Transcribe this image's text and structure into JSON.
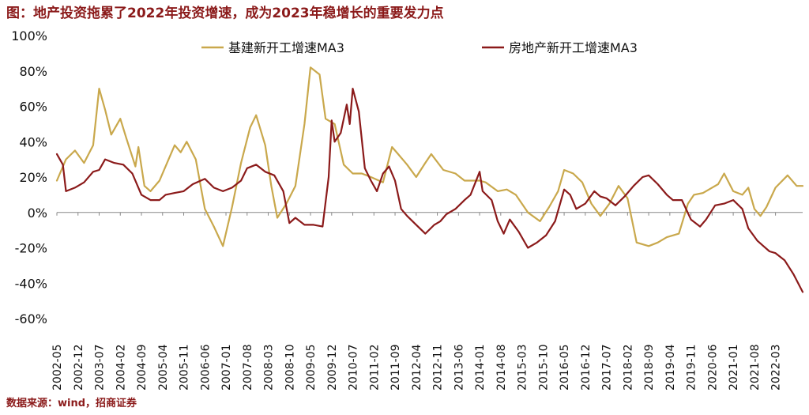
{
  "title": "图：地产投资拖累了2022年投资增速，成为2023年稳增长的重要发力点",
  "source": "数据来源：wind，招商证券",
  "chart_data": {
    "type": "line",
    "title": "图：地产投资拖累了2022年投资增速，成为2023年稳增长的重要发力点",
    "xlabel": "",
    "ylabel": "",
    "ylim": [
      -60,
      100
    ],
    "y_ticks": [
      "100%",
      "80%",
      "60%",
      "40%",
      "20%",
      "0%",
      "-20%",
      "-40%",
      "-60%"
    ],
    "x_range": [
      "2002-05",
      "2022-12"
    ],
    "x_tick_labels": [
      "2002-05",
      "2002-12",
      "2003-07",
      "2004-02",
      "2004-09",
      "2005-04",
      "2005-11",
      "2006-06",
      "2007-01",
      "2007-08",
      "2008-03",
      "2008-10",
      "2009-05",
      "2009-12",
      "2010-07",
      "2011-02",
      "2011-09",
      "2012-04",
      "2012-11",
      "2013-06",
      "2014-01",
      "2014-08",
      "2015-03",
      "2015-10",
      "2016-05",
      "2016-12",
      "2017-07",
      "2018-02",
      "2018-09",
      "2019-04",
      "2019-11",
      "2020-06",
      "2021-01",
      "2021-08",
      "2022-03"
    ],
    "grid": false,
    "legend_position": "top",
    "series": [
      {
        "name": "基建新开工增速MA3",
        "color": "#c9a84c",
        "points": [
          [
            "2002-05",
            18
          ],
          [
            "2002-08",
            30
          ],
          [
            "2002-11",
            35
          ],
          [
            "2003-02",
            28
          ],
          [
            "2003-05",
            38
          ],
          [
            "2003-07",
            70
          ],
          [
            "2003-09",
            58
          ],
          [
            "2003-11",
            44
          ],
          [
            "2004-02",
            53
          ],
          [
            "2004-04",
            42
          ],
          [
            "2004-07",
            26
          ],
          [
            "2004-08",
            37
          ],
          [
            "2004-10",
            15
          ],
          [
            "2004-12",
            12
          ],
          [
            "2005-03",
            18
          ],
          [
            "2005-06",
            30
          ],
          [
            "2005-08",
            38
          ],
          [
            "2005-10",
            34
          ],
          [
            "2005-12",
            40
          ],
          [
            "2006-03",
            30
          ],
          [
            "2006-06",
            2
          ],
          [
            "2006-09",
            -8
          ],
          [
            "2006-12",
            -19
          ],
          [
            "2007-03",
            3
          ],
          [
            "2007-06",
            28
          ],
          [
            "2007-09",
            48
          ],
          [
            "2007-11",
            55
          ],
          [
            "2008-02",
            38
          ],
          [
            "2008-04",
            15
          ],
          [
            "2008-06",
            -3
          ],
          [
            "2008-09",
            5
          ],
          [
            "2008-12",
            15
          ],
          [
            "2009-03",
            50
          ],
          [
            "2009-05",
            82
          ],
          [
            "2009-08",
            78
          ],
          [
            "2009-10",
            53
          ],
          [
            "2010-01",
            50
          ],
          [
            "2010-04",
            27
          ],
          [
            "2010-07",
            22
          ],
          [
            "2010-10",
            22
          ],
          [
            "2011-01",
            20
          ],
          [
            "2011-05",
            17
          ],
          [
            "2011-08",
            37
          ],
          [
            "2011-10",
            33
          ],
          [
            "2012-01",
            27
          ],
          [
            "2012-04",
            20
          ],
          [
            "2012-07",
            28
          ],
          [
            "2012-09",
            33
          ],
          [
            "2013-01",
            24
          ],
          [
            "2013-05",
            22
          ],
          [
            "2013-08",
            18
          ],
          [
            "2014-01",
            18
          ],
          [
            "2014-03",
            17
          ],
          [
            "2014-07",
            12
          ],
          [
            "2014-10",
            13
          ],
          [
            "2015-01",
            10
          ],
          [
            "2015-05",
            0
          ],
          [
            "2015-09",
            -5
          ],
          [
            "2015-12",
            3
          ],
          [
            "2016-03",
            12
          ],
          [
            "2016-05",
            24
          ],
          [
            "2016-08",
            22
          ],
          [
            "2016-11",
            17
          ],
          [
            "2017-02",
            5
          ],
          [
            "2017-05",
            -2
          ],
          [
            "2017-08",
            5
          ],
          [
            "2017-11",
            15
          ],
          [
            "2018-02",
            8
          ],
          [
            "2018-05",
            -17
          ],
          [
            "2018-09",
            -19
          ],
          [
            "2018-12",
            -17
          ],
          [
            "2019-03",
            -14
          ],
          [
            "2019-07",
            -12
          ],
          [
            "2019-10",
            5
          ],
          [
            "2019-12",
            10
          ],
          [
            "2020-03",
            11
          ],
          [
            "2020-06",
            14
          ],
          [
            "2020-08",
            16
          ],
          [
            "2020-10",
            22
          ],
          [
            "2021-01",
            12
          ],
          [
            "2021-04",
            10
          ],
          [
            "2021-06",
            14
          ],
          [
            "2021-08",
            2
          ],
          [
            "2021-10",
            -2
          ],
          [
            "2021-12",
            3
          ],
          [
            "2022-03",
            14
          ],
          [
            "2022-07",
            21
          ],
          [
            "2022-10",
            15
          ],
          [
            "2022-12",
            15
          ]
        ]
      },
      {
        "name": "房地产新开工增速MA3",
        "color": "#8b1a1a",
        "points": [
          [
            "2002-05",
            33
          ],
          [
            "2002-07",
            27
          ],
          [
            "2002-08",
            12
          ],
          [
            "2002-11",
            14
          ],
          [
            "2003-02",
            17
          ],
          [
            "2003-05",
            23
          ],
          [
            "2003-07",
            24
          ],
          [
            "2003-09",
            30
          ],
          [
            "2003-12",
            28
          ],
          [
            "2004-03",
            27
          ],
          [
            "2004-06",
            22
          ],
          [
            "2004-09",
            10
          ],
          [
            "2004-12",
            7
          ],
          [
            "2005-03",
            7
          ],
          [
            "2005-05",
            10
          ],
          [
            "2005-08",
            11
          ],
          [
            "2005-11",
            12
          ],
          [
            "2006-02",
            16
          ],
          [
            "2006-06",
            19
          ],
          [
            "2006-09",
            14
          ],
          [
            "2006-12",
            12
          ],
          [
            "2007-03",
            14
          ],
          [
            "2007-06",
            18
          ],
          [
            "2007-08",
            25
          ],
          [
            "2007-11",
            27
          ],
          [
            "2008-02",
            23
          ],
          [
            "2008-05",
            21
          ],
          [
            "2008-08",
            12
          ],
          [
            "2008-10",
            -6
          ],
          [
            "2008-12",
            -3
          ],
          [
            "2009-03",
            -7
          ],
          [
            "2009-06",
            -7
          ],
          [
            "2009-09",
            -8
          ],
          [
            "2009-11",
            20
          ],
          [
            "2009-12",
            52
          ],
          [
            "2010-01",
            40
          ],
          [
            "2010-03",
            45
          ],
          [
            "2010-05",
            61
          ],
          [
            "2010-06",
            50
          ],
          [
            "2010-07",
            70
          ],
          [
            "2010-09",
            57
          ],
          [
            "2010-11",
            25
          ],
          [
            "2011-01",
            18
          ],
          [
            "2011-03",
            12
          ],
          [
            "2011-05",
            22
          ],
          [
            "2011-07",
            26
          ],
          [
            "2011-09",
            18
          ],
          [
            "2011-11",
            2
          ],
          [
            "2012-01",
            -2
          ],
          [
            "2012-04",
            -7
          ],
          [
            "2012-07",
            -12
          ],
          [
            "2012-10",
            -7
          ],
          [
            "2012-12",
            -5
          ],
          [
            "2013-02",
            -1
          ],
          [
            "2013-05",
            2
          ],
          [
            "2013-08",
            7
          ],
          [
            "2013-10",
            10
          ],
          [
            "2014-01",
            23
          ],
          [
            "2014-02",
            12
          ],
          [
            "2014-05",
            7
          ],
          [
            "2014-07",
            -5
          ],
          [
            "2014-09",
            -12
          ],
          [
            "2014-11",
            -4
          ],
          [
            "2015-02",
            -11
          ],
          [
            "2015-05",
            -20
          ],
          [
            "2015-08",
            -17
          ],
          [
            "2015-11",
            -13
          ],
          [
            "2016-02",
            -5
          ],
          [
            "2016-05",
            13
          ],
          [
            "2016-07",
            10
          ],
          [
            "2016-09",
            2
          ],
          [
            "2016-12",
            5
          ],
          [
            "2017-03",
            12
          ],
          [
            "2017-05",
            9
          ],
          [
            "2017-07",
            8
          ],
          [
            "2017-10",
            4
          ],
          [
            "2018-01",
            9
          ],
          [
            "2018-04",
            15
          ],
          [
            "2018-07",
            20
          ],
          [
            "2018-09",
            21
          ],
          [
            "2018-12",
            16
          ],
          [
            "2019-03",
            10
          ],
          [
            "2019-05",
            7
          ],
          [
            "2019-08",
            7
          ],
          [
            "2019-11",
            -4
          ],
          [
            "2020-02",
            -8
          ],
          [
            "2020-04",
            -4
          ],
          [
            "2020-07",
            4
          ],
          [
            "2020-10",
            5
          ],
          [
            "2021-01",
            7
          ],
          [
            "2021-04",
            2
          ],
          [
            "2021-06",
            -9
          ],
          [
            "2021-09",
            -16
          ],
          [
            "2021-11",
            -19
          ],
          [
            "2022-01",
            -22
          ],
          [
            "2022-03",
            -23
          ],
          [
            "2022-06",
            -27
          ],
          [
            "2022-09",
            -35
          ],
          [
            "2022-12",
            -45
          ]
        ]
      }
    ]
  }
}
